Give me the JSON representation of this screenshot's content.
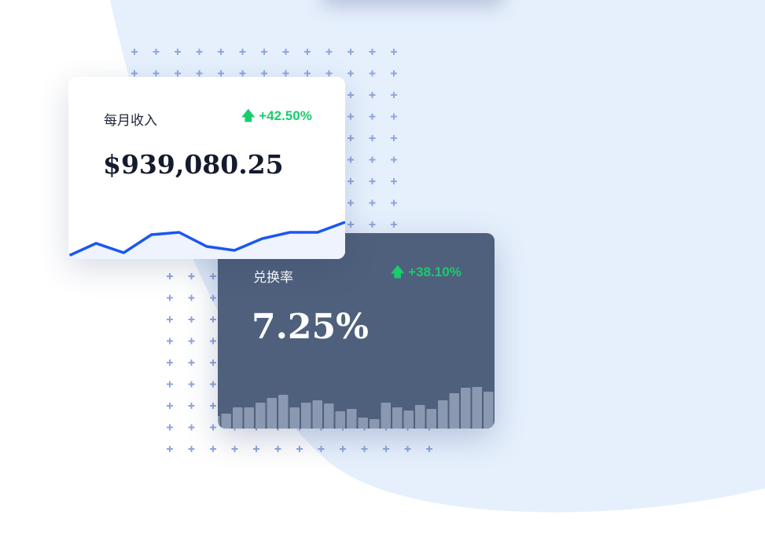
{
  "colors": {
    "background_blob": "#e6f0fd",
    "accent_line": "#1a56f0",
    "positive": "#19cc6c",
    "dark_card": "#4f607c",
    "bar": "#8a99b1"
  },
  "revenue_card": {
    "label": "每月收入",
    "delta": "+42.50%",
    "delta_icon": "arrow-up-icon",
    "value": "$939,080.25",
    "trend": [
      0,
      16,
      4,
      27,
      30,
      12,
      7,
      22,
      30,
      30,
      43
    ]
  },
  "conversion_card": {
    "label": "兑换率",
    "delta": "+38.10%",
    "delta_icon": "arrow-up-icon",
    "value": "7.25%",
    "bars": [
      16,
      19,
      27,
      27,
      33,
      39,
      43,
      27,
      33,
      36,
      32,
      22,
      25,
      14,
      12,
      33,
      27,
      23,
      30,
      25,
      36,
      45,
      52,
      53,
      47
    ]
  }
}
